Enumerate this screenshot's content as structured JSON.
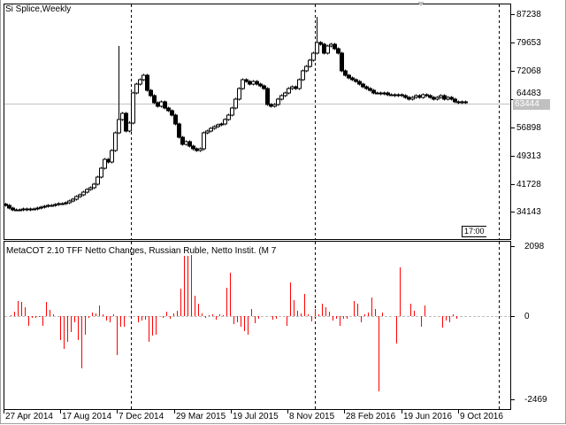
{
  "window": {
    "title": "Si Splice,Weekly",
    "indicator_title": "MetaCOT 2.10 TFF Netto Changes, Russian Ruble, Netto Instit. (M 7",
    "current_price": "63444",
    "time_tag": "17:00"
  },
  "colors": {
    "histogram": "#ff0000",
    "price_line": "#c0c0c0",
    "grid_separator": "#000000",
    "bull_body": "#ffffff",
    "bear_body": "#000000"
  },
  "price_axis": {
    "ticks": [
      "87238",
      "79653",
      "72068",
      "64483",
      "56898",
      "49313",
      "41728",
      "34143"
    ]
  },
  "indicator_axis": {
    "ticks": [
      "2098",
      "0",
      "-2469"
    ]
  },
  "time_axis": {
    "ticks": [
      "27 Apr 2014",
      "17 Aug 2014",
      "7 Dec 2014",
      "29 Mar 2015",
      "19 Jul 2015",
      "8 Nov 2015",
      "28 Feb 2016",
      "19 Jun 2016",
      "9 Oct 2016"
    ]
  },
  "chart_data": [
    {
      "type": "candlestick",
      "title": "Si Splice,Weekly",
      "ylim": [
        34143,
        87238
      ],
      "closes": [
        35809,
        35094,
        34618,
        34618,
        34618,
        34856,
        34618,
        34856,
        34856,
        35094,
        35333,
        35571,
        35809,
        35809,
        36047,
        36285,
        36285,
        36523,
        36999,
        37475,
        38190,
        38666,
        39380,
        40095,
        40571,
        41523,
        43428,
        45809,
        48190,
        47476,
        50571,
        55333,
        58905,
        60571,
        55809,
        58000,
        66048,
        68429,
        69619,
        70810,
        66762,
        65333,
        63428,
        62476,
        63666,
        62000,
        61286,
        60095,
        57714,
        54143,
        52238,
        52952,
        51762,
        51000,
        50571,
        51000,
        55333,
        55809,
        56524,
        57000,
        57476,
        57714,
        58905,
        60095,
        62000,
        64381,
        67238,
        69619,
        69143,
        68429,
        69143,
        68429,
        67952,
        67238,
        62952,
        62476,
        62952,
        64381,
        65333,
        66048,
        67238,
        67714,
        67238,
        69619,
        72000,
        73191,
        74857,
        76762,
        79619,
        79143,
        76762,
        78667,
        79143,
        77952,
        76762,
        72000,
        70810,
        70095,
        69619,
        69143,
        68429,
        67714,
        67238,
        66762,
        66048,
        66048,
        65800,
        66048,
        65570,
        65570,
        65333,
        65570,
        65333,
        64857,
        64381,
        64857,
        65333,
        64857,
        65570,
        65333,
        64857,
        64381,
        64857,
        65333,
        64381,
        64857,
        64381,
        63666,
        63428,
        63666,
        63444
      ],
      "spike_highs": {
        "32": 78667,
        "88": 86500
      },
      "grid": false
    },
    {
      "type": "bar",
      "title": "MetaCOT 2.10 TFF Netto Changes, Russian Ruble, Netto Instit. (M 7",
      "ylim": [
        -2469,
        2098
      ],
      "values": [
        26,
        131,
        447,
        421,
        263,
        -289,
        -53,
        -53,
        -26,
        -289,
        421,
        184,
        53,
        0,
        -710,
        -973,
        -763,
        -473,
        -184,
        -710,
        -1552,
        -552,
        -53,
        105,
        79,
        316,
        53,
        -131,
        -184,
        53,
        -1157,
        -316,
        -316,
        0,
        0,
        0,
        -184,
        -131,
        -105,
        -763,
        -579,
        -552,
        0,
        -53,
        131,
        -79,
        79,
        158,
        815,
        1788,
        1788,
        1815,
        605,
        368,
        79,
        -53,
        26,
        53,
        -105,
        53,
        26,
        842,
        1289,
        -237,
        -184,
        -316,
        -447,
        -552,
        210,
        -210,
        -79,
        0,
        0,
        0,
        -105,
        -79,
        0,
        0,
        -289,
        999,
        473,
        158,
        79,
        658,
        53,
        -158,
        210,
        53,
        368,
        263,
        131,
        -131,
        -79,
        -289,
        -79,
        -79,
        0,
        447,
        368,
        -184,
        53,
        105,
        552,
        210,
        -2236,
        105,
        0,
        0,
        0,
        -815,
        1447,
        0,
        0,
        368,
        158,
        0,
        -316,
        316,
        0,
        0,
        0,
        0,
        -342,
        -131,
        -184,
        53,
        -79
      ],
      "grid": false
    }
  ]
}
